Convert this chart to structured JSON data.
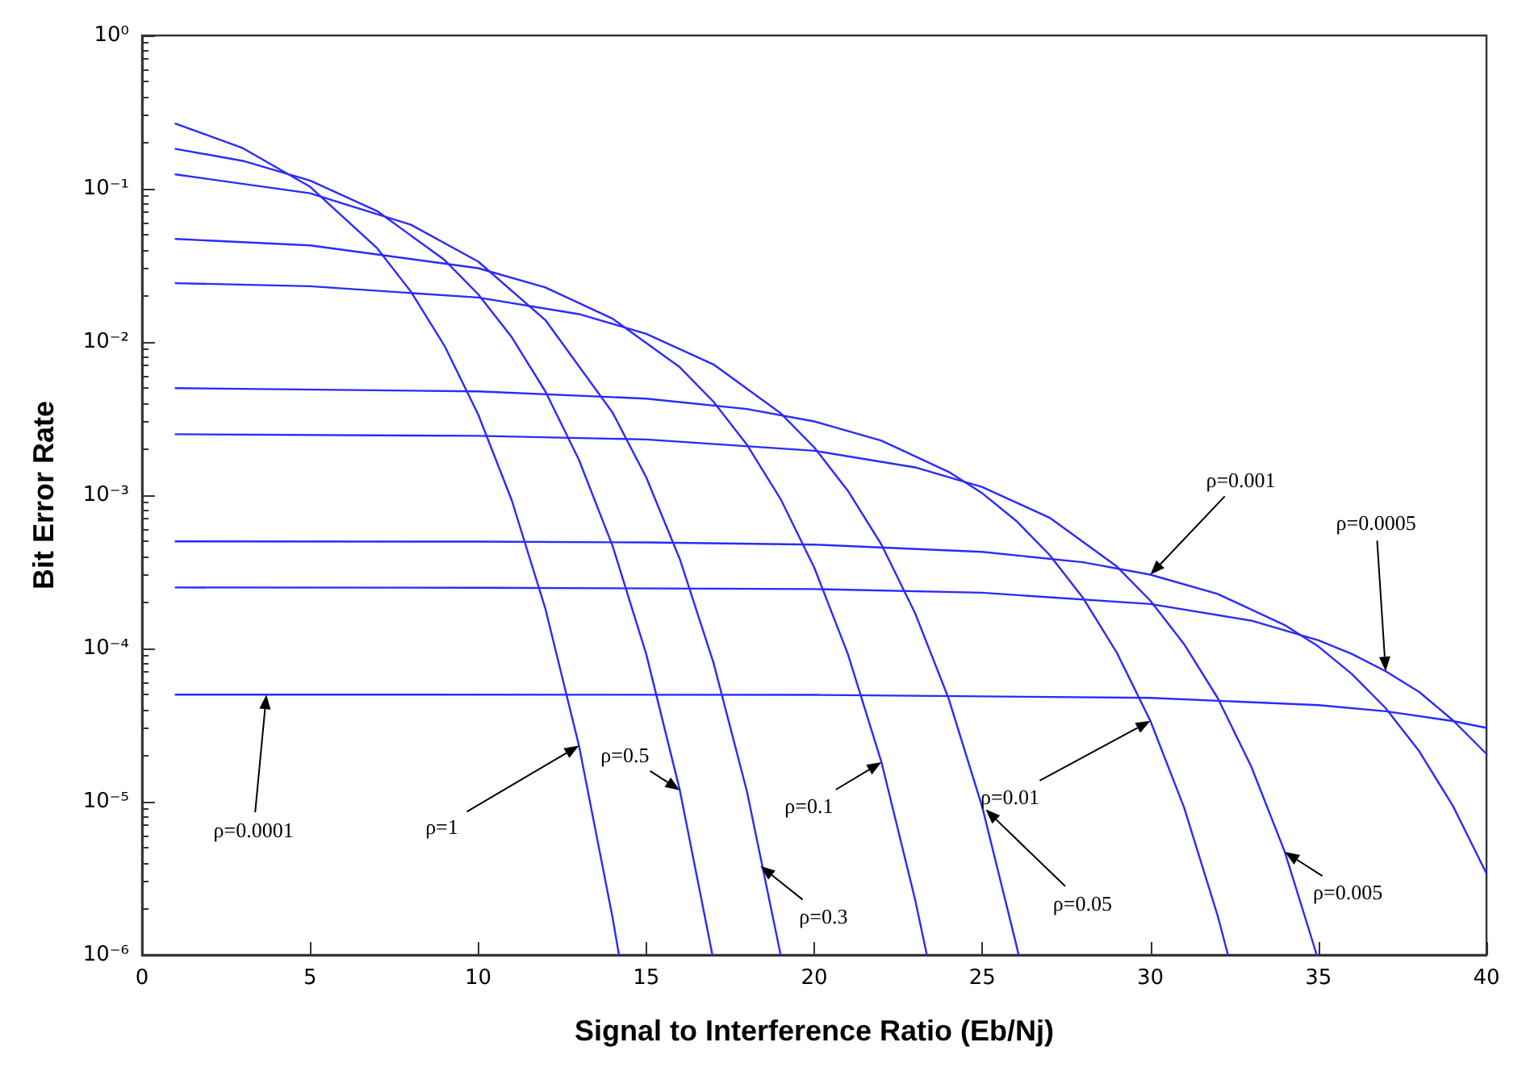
{
  "chart_data": {
    "type": "line",
    "xlabel": "Signal to Interference Ratio (Eb/Nj)",
    "ylabel": "Bit Error Rate",
    "log": "y",
    "grid": false,
    "marker": "none",
    "line_style": "solid",
    "xlim": [
      0,
      40
    ],
    "xticks": [
      0,
      5,
      10,
      15,
      20,
      25,
      30,
      35,
      40
    ],
    "ylim": [
      1e-06,
      1
    ],
    "yticks": [
      {
        "value": 1e-06,
        "label": "10⁻⁶"
      },
      {
        "value": 1e-05,
        "label": "10⁻⁵"
      },
      {
        "value": 0.0001,
        "label": "10⁻⁴"
      },
      {
        "value": 0.001,
        "label": "10⁻³"
      },
      {
        "value": 0.01,
        "label": "10⁻²"
      },
      {
        "value": 0.1,
        "label": "10⁻¹"
      },
      {
        "value": 1,
        "label": "10⁰"
      }
    ],
    "series": [
      {
        "color": "#2a2aff",
        "x": [
          1,
          3,
          5,
          7,
          8,
          9,
          10,
          11,
          12,
          13,
          14,
          14.19
        ],
        "values": [
          0.266,
          0.184,
          0.103,
          0.0408,
          0.0213,
          0.00943,
          0.00337,
          0.000927,
          0.000182,
          2.32e-05,
          1.75e-06,
          1e-06
        ]
      },
      {
        "color": "#2a2aff",
        "x": [
          1,
          3,
          5,
          7,
          9,
          10,
          11,
          12,
          13,
          14,
          15,
          16,
          16.97
        ],
        "values": [
          0.182,
          0.152,
          0.113,
          0.0714,
          0.0343,
          0.0205,
          0.01075,
          0.00476,
          0.0017,
          0.000467,
          9.2e-05,
          1.19e-05,
          1e-06
        ]
      },
      {
        "color": "#2a2aff",
        "x": [
          1,
          5,
          8,
          10,
          12,
          14,
          15,
          16,
          17,
          18,
          19
        ],
        "values": [
          0.124,
          0.0934,
          0.0582,
          0.0335,
          0.0139,
          0.00346,
          0.00131,
          0.000383,
          8.1e-05,
          1.16e-05,
          1e-06
        ]
      },
      {
        "color": "#2a2aff",
        "x": [
          1,
          5,
          10,
          12,
          14,
          16,
          17,
          18,
          19,
          20,
          21,
          22,
          23,
          23.35
        ],
        "values": [
          0.047,
          0.0427,
          0.0303,
          0.0227,
          0.0142,
          0.00684,
          0.00408,
          0.00213,
          0.000943,
          0.000337,
          9.2e-05,
          1.81e-05,
          2.3e-06,
          1e-06
        ]
      },
      {
        "color": "#2a2aff",
        "x": [
          1,
          5,
          10,
          13,
          15,
          17,
          19,
          20,
          21,
          22,
          23,
          24,
          25,
          26,
          26.08
        ],
        "values": [
          0.0242,
          0.0231,
          0.0195,
          0.0152,
          0.0113,
          0.00714,
          0.00343,
          0.00205,
          0.00107,
          0.000476,
          0.00017,
          4.7e-05,
          9.2e-06,
          1.19e-06,
          1e-06
        ]
      },
      {
        "color": "#2a2aff",
        "x": [
          1,
          10,
          15,
          18,
          20,
          22,
          24,
          25,
          26,
          27,
          28,
          29,
          30,
          31,
          32,
          32.31
        ],
        "values": [
          0.005,
          0.00476,
          0.00427,
          0.00365,
          0.00303,
          0.00227,
          0.00142,
          0.00103,
          0.000683,
          0.000408,
          0.000213,
          9.4e-05,
          3.37e-05,
          9.2e-06,
          1.81e-06,
          1e-06
        ]
      },
      {
        "color": "#2a2aff",
        "x": [
          1,
          10,
          15,
          20,
          23,
          25,
          27,
          29,
          30,
          31,
          32,
          33,
          34,
          34.95
        ],
        "values": [
          0.0025,
          0.00244,
          0.00231,
          0.00195,
          0.00152,
          0.00113,
          0.000714,
          0.000343,
          0.000205,
          0.000107,
          4.76e-05,
          1.7e-05,
          4.7e-06,
          1e-06
        ]
      },
      {
        "color": "#2a2aff",
        "x": [
          1,
          10,
          15,
          20,
          25,
          28,
          30,
          32,
          34,
          35,
          36,
          37,
          38,
          39,
          40
        ],
        "values": [
          0.0005,
          0.000498,
          0.000492,
          0.000476,
          0.000427,
          0.000365,
          0.000303,
          0.000227,
          0.000142,
          0.000103,
          6.8e-05,
          4.08e-05,
          2.13e-05,
          9.4e-06,
          3.4e-06
        ]
      },
      {
        "color": "#2a2aff",
        "x": [
          1,
          10,
          20,
          25,
          30,
          33,
          35,
          36,
          37,
          38,
          39,
          40
        ],
        "values": [
          0.00025,
          0.000249,
          0.000244,
          0.000231,
          0.000195,
          0.000152,
          0.000113,
          9.2e-05,
          7.1e-05,
          5.2e-05,
          3.4e-05,
          2.05e-05
        ]
      },
      {
        "color": "#2a2aff",
        "x": [
          1,
          20,
          30,
          35,
          37,
          39,
          40
        ],
        "values": [
          5e-05,
          4.98e-05,
          4.76e-05,
          4.27e-05,
          3.89e-05,
          3.36e-05,
          3.03e-05
        ]
      }
    ],
    "annotations": [
      {
        "text": "ρ=0.0001",
        "x": 3.7,
        "y": 5e-05
      },
      "ρ=1",
      {
        "text": "ρ=0.5",
        "x": 16,
        "y": 1.19e-05
      },
      {
        "text": "ρ=0.3",
        "x": 18.4,
        "y": 3.8e-06
      },
      {
        "text": "ρ=0.1",
        "x": 22,
        "y": 1.81e-05
      },
      {
        "text": "ρ=0.05",
        "x": 25.1,
        "y": 8.9e-06
      },
      "ρ=0.01",
      {
        "text": "ρ=0.005",
        "x": 34,
        "y": 4.7e-06
      },
      "ρ=0.001",
      "ρ=0.0005"
    ]
  }
}
